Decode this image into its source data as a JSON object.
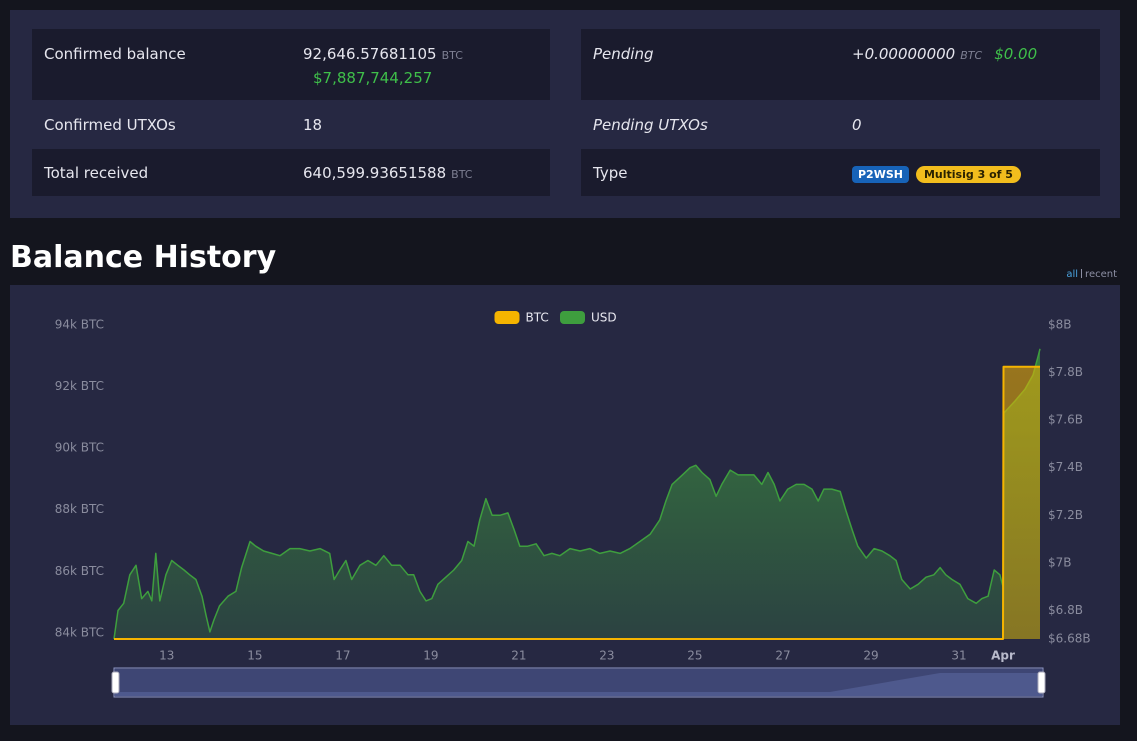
{
  "summary": {
    "left": [
      {
        "label": "Confirmed balance",
        "value": "92,646.57681105",
        "unit": "BTC",
        "fiat": "$7,887,744,257"
      },
      {
        "label": "Confirmed UTXOs",
        "value": "18"
      },
      {
        "label": "Total received",
        "value": "640,599.93651588",
        "unit": "BTC"
      }
    ],
    "right": [
      {
        "label": "Pending",
        "value": "+0.00000000",
        "unit": "BTC",
        "fiat": "$0.00"
      },
      {
        "label": "Pending UTXOs",
        "value": "0"
      },
      {
        "label": "Type",
        "badges": [
          "P2WSH",
          "Multisig 3 of 5"
        ]
      }
    ]
  },
  "section_title": "Balance History",
  "range_links": [
    "all",
    "recent"
  ],
  "chart_data": {
    "type": "area",
    "legend": "top",
    "xlim": [
      11.8,
      32.84
    ],
    "xticks": [
      13,
      15,
      17,
      19,
      21,
      23,
      25,
      27,
      29,
      31,
      {
        "value": 32,
        "label": "Apr"
      }
    ],
    "ylim": [
      83800,
      94000
    ],
    "yticks": [
      {
        "value": 84000,
        "label": "84k BTC"
      },
      {
        "value": 86000,
        "label": "86k BTC"
      },
      {
        "value": 88000,
        "label": "88k BTC"
      },
      {
        "value": 90000,
        "label": "90k BTC"
      },
      {
        "value": 92000,
        "label": "92k BTC"
      },
      {
        "value": 94000,
        "label": "94k BTC"
      }
    ],
    "y2lim": [
      6680000000.0,
      8000000000.0
    ],
    "y2ticks": [
      {
        "value": 6680000000.0,
        "label": "$6.68B"
      },
      {
        "value": 6800000000.0,
        "label": "$6.8B"
      },
      {
        "value": 7000000000.0,
        "label": "$7B"
      },
      {
        "value": 7200000000.0,
        "label": "$7.2B"
      },
      {
        "value": 7400000000.0,
        "label": "$7.4B"
      },
      {
        "value": 7600000000.0,
        "label": "$7.6B"
      },
      {
        "value": 7800000000.0,
        "label": "$7.8B"
      },
      {
        "value": 8000000000.0,
        "label": "$8B"
      }
    ],
    "series": [
      {
        "name": "BTC",
        "color": "#f5b400",
        "axis": "y",
        "x": [
          11.8,
          32.0,
          32.01,
          32.84
        ],
        "values": [
          83800,
          83800,
          92646.58,
          92646.58
        ]
      },
      {
        "name": "USD",
        "color": "#3e9e3e",
        "axis": "y2",
        "x": [
          11.8,
          11.89,
          12.02,
          12.16,
          12.3,
          12.43,
          12.57,
          12.66,
          12.75,
          12.84,
          12.98,
          13.11,
          13.25,
          13.39,
          13.52,
          13.66,
          13.8,
          13.89,
          13.98,
          14.07,
          14.2,
          14.39,
          14.57,
          14.7,
          14.89,
          15.02,
          15.2,
          15.39,
          15.57,
          15.8,
          16.02,
          16.25,
          16.48,
          16.7,
          16.8,
          16.93,
          17.07,
          17.2,
          17.39,
          17.57,
          17.75,
          17.93,
          18.11,
          18.3,
          18.48,
          18.61,
          18.75,
          18.89,
          19.02,
          19.16,
          19.34,
          19.52,
          19.7,
          19.84,
          19.98,
          20.11,
          20.25,
          20.39,
          20.57,
          20.75,
          20.89,
          21.02,
          21.2,
          21.39,
          21.57,
          21.75,
          21.93,
          22.16,
          22.39,
          22.61,
          22.84,
          23.07,
          23.3,
          23.52,
          23.75,
          23.98,
          24.2,
          24.34,
          24.48,
          24.66,
          24.89,
          25.02,
          25.16,
          25.34,
          25.48,
          25.61,
          25.8,
          25.98,
          26.16,
          26.34,
          26.52,
          26.66,
          26.8,
          26.93,
          27.11,
          27.3,
          27.48,
          27.66,
          27.8,
          27.93,
          28.11,
          28.3,
          28.43,
          28.57,
          28.7,
          28.89,
          29.07,
          29.25,
          29.43,
          29.57,
          29.7,
          29.89,
          30.07,
          30.25,
          30.43,
          30.57,
          30.7,
          30.84,
          31.02,
          31.2,
          31.39,
          31.52,
          31.66,
          31.8,
          31.93,
          32.0,
          32.02,
          32.27,
          32.5,
          32.68,
          32.8,
          32.84
        ],
        "values": [
          6680000000.0,
          6800000000.0,
          6830000000.0,
          6950000000.0,
          6990000000.0,
          6850000000.0,
          6880000000.0,
          6840000000.0,
          7040000000.0,
          6840000000.0,
          6950000000.0,
          7010000000.0,
          6990000000.0,
          6970000000.0,
          6950000000.0,
          6930000000.0,
          6860000000.0,
          6780000000.0,
          6710000000.0,
          6760000000.0,
          6820000000.0,
          6860000000.0,
          6880000000.0,
          6980000000.0,
          7090000000.0,
          7070000000.0,
          7050000000.0,
          7040000000.0,
          7030000000.0,
          7060000000.0,
          7060000000.0,
          7050000000.0,
          7060000000.0,
          7040000000.0,
          6930000000.0,
          6970000000.0,
          7010000000.0,
          6930000000.0,
          6990000000.0,
          7010000000.0,
          6990000000.0,
          7030000000.0,
          6990000000.0,
          6990000000.0,
          6950000000.0,
          6950000000.0,
          6880000000.0,
          6840000000.0,
          6850000000.0,
          6910000000.0,
          6940000000.0,
          6970000000.0,
          7010000000.0,
          7090000000.0,
          7070000000.0,
          7180000000.0,
          7270000000.0,
          7200000000.0,
          7200000000.0,
          7210000000.0,
          7140000000.0,
          7070000000.0,
          7070000000.0,
          7080000000.0,
          7030000000.0,
          7040000000.0,
          7030000000.0,
          7060000000.0,
          7050000000.0,
          7060000000.0,
          7040000000.0,
          7050000000.0,
          7040000000.0,
          7060000000.0,
          7090000000.0,
          7120000000.0,
          7180000000.0,
          7260000000.0,
          7330000000.0,
          7360000000.0,
          7400000000.0,
          7410000000.0,
          7380000000.0,
          7350000000.0,
          7280000000.0,
          7330000000.0,
          7390000000.0,
          7370000000.0,
          7370000000.0,
          7370000000.0,
          7330000000.0,
          7380000000.0,
          7330000000.0,
          7260000000.0,
          7310000000.0,
          7330000000.0,
          7330000000.0,
          7310000000.0,
          7260000000.0,
          7310000000.0,
          7310000000.0,
          7300000000.0,
          7220000000.0,
          7140000000.0,
          7070000000.0,
          7020000000.0,
          7060000000.0,
          7050000000.0,
          7030000000.0,
          7010000000.0,
          6930000000.0,
          6890000000.0,
          6910000000.0,
          6940000000.0,
          6950000000.0,
          6980000000.0,
          6950000000.0,
          6930000000.0,
          6910000000.0,
          6850000000.0,
          6830000000.0,
          6850000000.0,
          6860000000.0,
          6970000000.0,
          6950000000.0,
          6900000000.0,
          7630000000.0,
          7680000000.0,
          7730000000.0,
          7790000000.0,
          7870000000.0,
          7900000000.0
        ]
      }
    ]
  }
}
